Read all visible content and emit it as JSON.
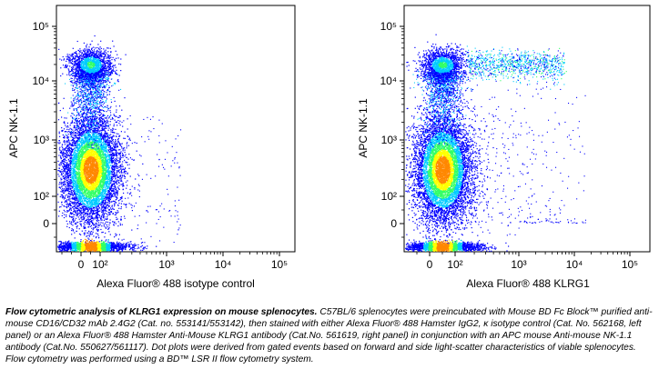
{
  "chart_data": [
    {
      "type": "scatter",
      "title": "",
      "xlabel": "Alexa Fluor® 488 isotype control",
      "ylabel": "APC NK-1.1",
      "x_scale": "biexponential",
      "y_scale": "biexponential",
      "x_ticks": [
        "0",
        "10²",
        "10³",
        "10⁴",
        "10⁵"
      ],
      "y_ticks": [
        "0",
        "10²",
        "10³",
        "10⁴",
        "10⁵"
      ],
      "populations": [
        {
          "name": "",
          "x_center": 50,
          "y_center": 300,
          "density": "high"
        },
        {
          "name": "",
          "x_center": 50,
          "y_center": 20000,
          "density": "medium"
        }
      ]
    },
    {
      "type": "scatter",
      "title": "",
      "xlabel": "Alexa Fluor® 488 KLRG1",
      "ylabel": "APC NK-1.1",
      "x_scale": "biexponential",
      "y_scale": "biexponential",
      "x_ticks": [
        "0",
        "10²",
        "10³",
        "10⁴",
        "10⁵"
      ],
      "y_ticks": [
        "0",
        "10²",
        "10³",
        "10⁴",
        "10⁵"
      ],
      "populations": [
        {
          "name": "",
          "x_center": 50,
          "y_center": 300,
          "density": "high"
        },
        {
          "name": "",
          "x_center": 50,
          "y_center": 20000,
          "density": "medium"
        },
        {
          "name": "",
          "x_center": 2000,
          "y_center": 20000,
          "density": "medium"
        }
      ]
    }
  ],
  "caption": {
    "bold": "Flow cytometric analysis of KLRG1 expression on mouse splenocytes.",
    "text": "C57BL/6 splenocytes were preincubated with Mouse BD Fc Block™ purified anti-mouse CD16/CD32 mAb 2.4G2 (Cat. no. 553141/553142), then stained with either Alexa Fluor® 488  Hamster IgG2, κ isotype control (Cat. No. 562168, left panel) or an Alexa Fluor® 488  Hamster Anti-Mouse KLRG1 antibody (Cat.No. 561619, right panel) in conjunction with an APC mouse Anti-mouse NK-1.1 antibody (Cat.No. 550627/561117). Dot plots were derived from gated events based on forward and side light-scatter characteristics of viable splenocytes. Flow cytometry was performed using a BD™ LSR II flow cytometry system."
  },
  "colors": {
    "low": "#0000ff",
    "mid_low": "#00ccff",
    "mid": "#33ff66",
    "mid_high": "#ffff00",
    "high": "#ff8800"
  }
}
